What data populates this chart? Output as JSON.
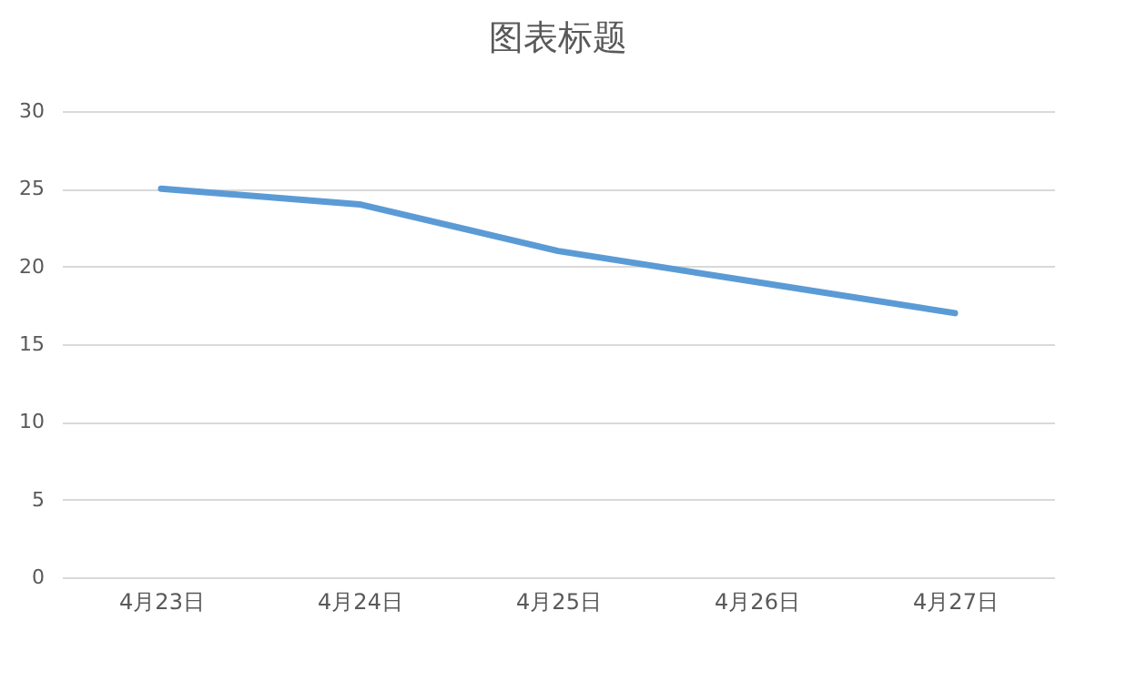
{
  "chart_data": {
    "type": "line",
    "title": "图表标题",
    "categories": [
      "4月23日",
      "4月24日",
      "4月25日",
      "4月26日",
      "4月27日"
    ],
    "series": [
      {
        "color": "#5b9bd5",
        "values": [
          25,
          24,
          21,
          19,
          17
        ]
      }
    ],
    "ylim": [
      0,
      30
    ],
    "yticks": [
      0,
      5,
      10,
      15,
      20,
      25,
      30
    ],
    "grid": "y",
    "legend": false,
    "marker": "none",
    "line_style": "solid"
  }
}
